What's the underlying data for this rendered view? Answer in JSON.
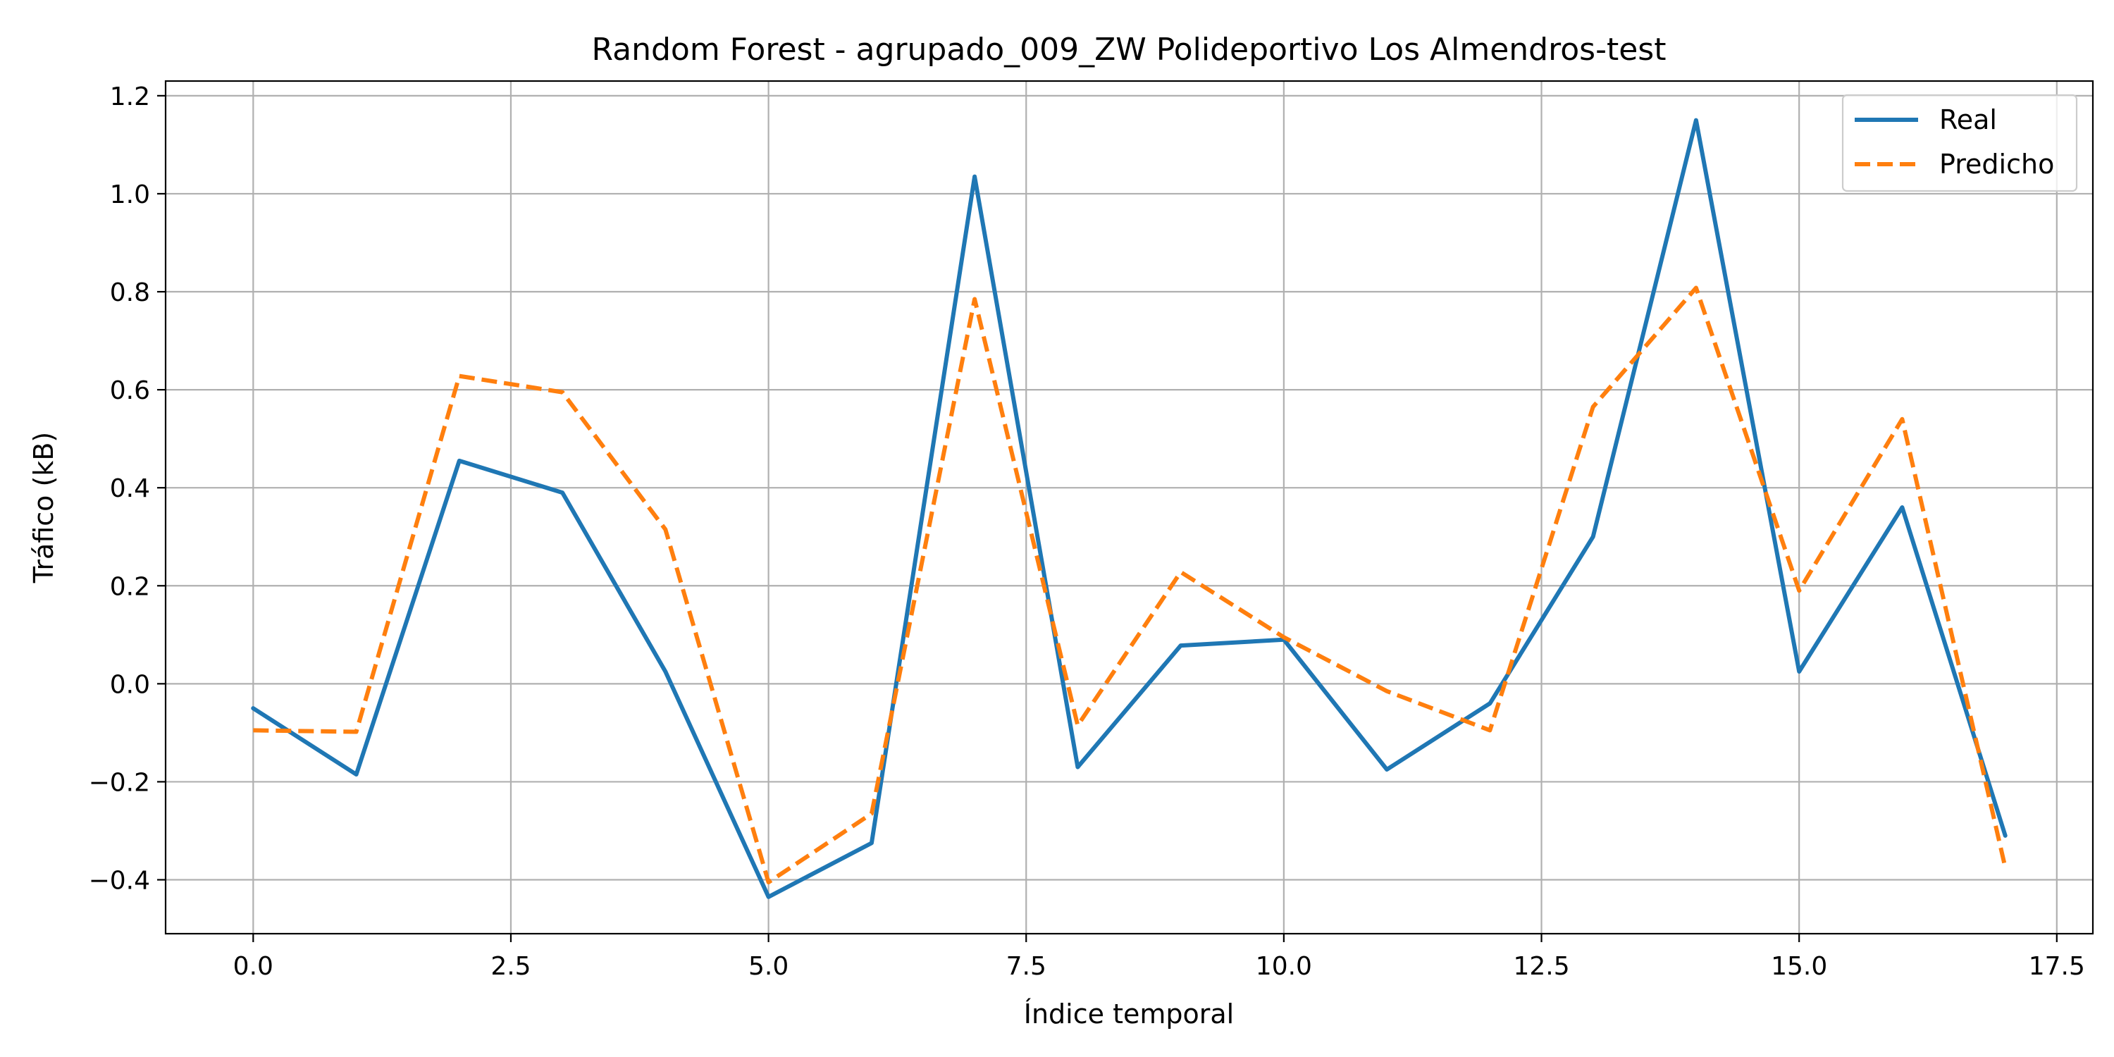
{
  "chart_data": {
    "type": "line",
    "title": "Random Forest - agrupado_009_ZW Polideportivo Los Almendros-test",
    "xlabel": "Índice temporal",
    "ylabel": "Tráfico (kB)",
    "xlim": [
      -0.85,
      17.85
    ],
    "ylim": [
      -0.51,
      1.23
    ],
    "x_ticks": [
      0.0,
      2.5,
      5.0,
      7.5,
      10.0,
      12.5,
      15.0,
      17.5
    ],
    "x_tick_labels": [
      "0.0",
      "2.5",
      "5.0",
      "7.5",
      "10.0",
      "12.5",
      "15.0",
      "17.5"
    ],
    "y_ticks": [
      -0.4,
      -0.2,
      0.0,
      0.2,
      0.4,
      0.6,
      0.8,
      1.0,
      1.2
    ],
    "y_tick_labels": [
      "−0.4",
      "−0.2",
      "0.0",
      "0.2",
      "0.4",
      "0.6",
      "0.8",
      "1.0",
      "1.2"
    ],
    "grid": true,
    "legend_position": "top-right",
    "x": [
      0,
      1,
      2,
      3,
      4,
      5,
      6,
      7,
      8,
      9,
      10,
      11,
      12,
      13,
      14,
      15,
      16,
      17
    ],
    "series": [
      {
        "name": "Real",
        "color": "#1f77b4",
        "style": "solid",
        "values": [
          -0.05,
          -0.185,
          0.455,
          0.39,
          0.025,
          -0.435,
          -0.325,
          1.035,
          -0.17,
          0.078,
          0.09,
          -0.175,
          -0.04,
          0.3,
          1.15,
          0.025,
          0.36,
          -0.31
        ]
      },
      {
        "name": "Predicho",
        "color": "#ff7f0e",
        "style": "dashed",
        "values": [
          -0.095,
          -0.098,
          0.628,
          0.595,
          0.315,
          -0.405,
          -0.265,
          0.785,
          -0.085,
          0.228,
          0.095,
          -0.015,
          -0.095,
          0.565,
          0.808,
          0.19,
          0.54,
          -0.375
        ]
      }
    ]
  }
}
